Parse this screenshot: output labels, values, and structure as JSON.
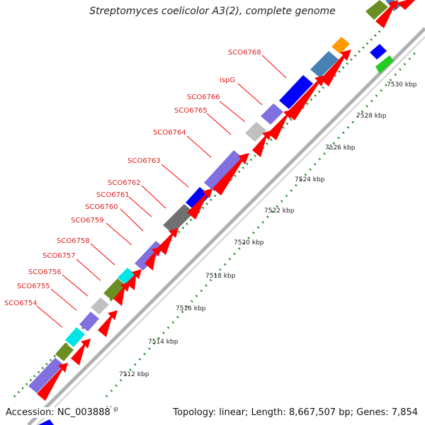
{
  "title": "Streptomyces coelicolor A3(2), complete genome",
  "accession_text": "Accession: NC_003888",
  "summary_text": "Topology: linear; Length: 8,667,507 bp; Genes: 7,854",
  "gene_labels": [
    "SCO6768",
    "ispG",
    "SCO6766",
    "SCO6765",
    "SCO6764",
    "SCO6763",
    "SCO6762",
    "SCO6761",
    "SCO6760",
    "SCO6759",
    "SCO6758",
    "SCO6757",
    "SCO6756",
    "SCO6755",
    "SCO6754"
  ],
  "kbp_labels": [
    "7530 kbp",
    "7528 kbp",
    "7526 kbp",
    "7524 kbp",
    "7522 kbp",
    "7520 kbp",
    "7518 kbp",
    "7516 kbp",
    "7514 kbp",
    "7512 kbp",
    "kbp"
  ],
  "colors": {
    "cds": "#ff0000",
    "lilac": "#8070e0",
    "olive": "#6b8e23",
    "cyan": "#00e5e5",
    "grey": "#c0c0c0",
    "darkgrey": "#707070",
    "blue": "#0000ff",
    "steel": "#4682b4",
    "orange": "#ff9900",
    "green": "#22cc22",
    "tick": "#228b22",
    "backbone": "#a9a9a9",
    "label_line": "#ff0000"
  }
}
